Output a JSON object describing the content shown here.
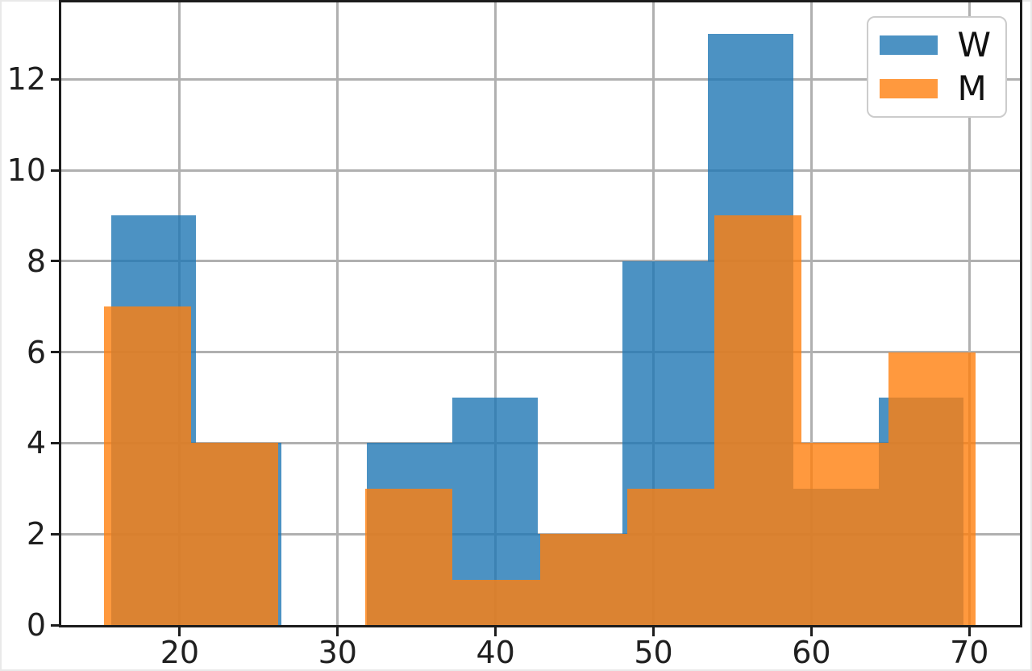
{
  "figure": {
    "background": "#ffffff",
    "spine_color": "#1c1c1c",
    "grid_color": "#b0b0b0",
    "tick_label_color": "#1f1f1f",
    "legend_border_color": "#cccccc"
  },
  "chart_data": {
    "type": "histogram",
    "title": "",
    "xlabel": "",
    "ylabel": "",
    "xlim": [
      12.5,
      73.2
    ],
    "ylim": [
      0,
      13.69
    ],
    "x_ticks": [
      "20",
      "30",
      "40",
      "50",
      "60",
      "70"
    ],
    "x_tick_values": [
      20,
      30,
      40,
      50,
      60,
      70
    ],
    "y_ticks": [
      "0",
      "2",
      "4",
      "6",
      "8",
      "10",
      "12"
    ],
    "y_tick_values": [
      0,
      2,
      4,
      6,
      8,
      10,
      12
    ],
    "grid": true,
    "legend_position": "upper right",
    "series": [
      {
        "name": "W",
        "color": "#1f77b4",
        "alpha": 0.8,
        "bin_edges": [
          15.65,
          21.05,
          26.45,
          31.85,
          37.25,
          42.65,
          48.05,
          53.45,
          58.85,
          64.25,
          69.65
        ],
        "counts": [
          9,
          4,
          0,
          4,
          5,
          2,
          8,
          13,
          3,
          5
        ]
      },
      {
        "name": "M",
        "color": "#ff7f0e",
        "alpha": 0.8,
        "bin_edges": [
          15.2,
          20.72,
          26.24,
          31.76,
          37.28,
          42.8,
          48.32,
          53.84,
          59.36,
          64.88,
          70.4
        ],
        "counts": [
          7,
          4,
          0,
          3,
          1,
          2,
          3,
          9,
          4,
          6
        ]
      }
    ]
  }
}
